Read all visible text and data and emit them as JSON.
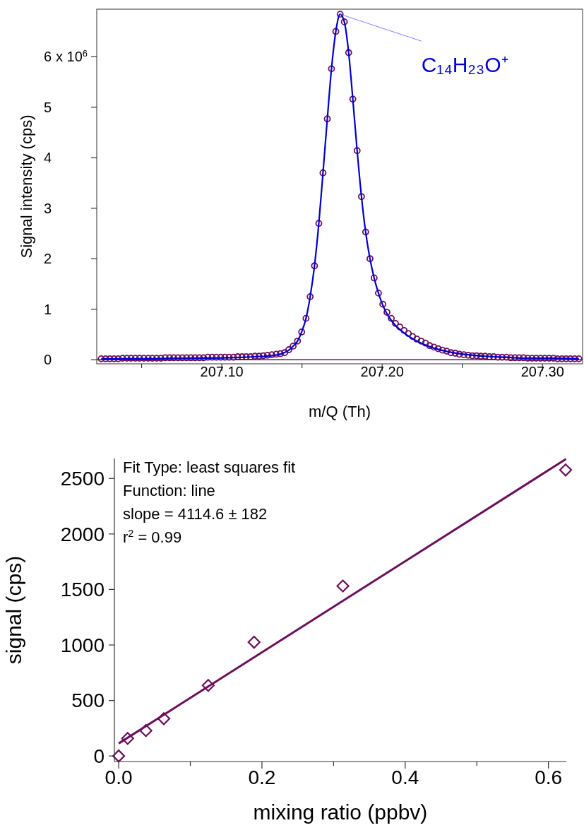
{
  "chart_data": [
    {
      "type": "scatter",
      "xlabel": "m/Q (Th)",
      "ylabel": "Signal intensity (cps)",
      "xlim": [
        207.022,
        207.325
      ],
      "ylim": [
        -0.08,
        6.94
      ],
      "xticks": [
        {
          "value": 207.05,
          "label": null
        },
        {
          "value": 207.1,
          "label": "207.10"
        },
        {
          "value": 207.15,
          "label": null
        },
        {
          "value": 207.2,
          "label": "207.20"
        },
        {
          "value": 207.25,
          "label": null
        },
        {
          "value": 207.3,
          "label": "207.30"
        }
      ],
      "yticks": [
        0,
        1,
        2,
        3,
        4,
        5,
        6
      ],
      "ref_lines": [
        {
          "axis": "y",
          "value": 0,
          "color": "#6b0f5a"
        }
      ],
      "annotations": [
        "x 10$^{6}$",
        {
          "text": "C₁₄H₂₃O⁺",
          "x": 207.1738,
          "y": 6.84
        }
      ],
      "series": [
        {
          "marker": "circle",
          "color": "#6b0f5a",
          "x": [
            207.0248,
            207.0275,
            207.0301,
            207.0328,
            207.0354,
            207.0381,
            207.0408,
            207.0434,
            207.0461,
            207.0487,
            207.0514,
            207.0541,
            207.0567,
            207.0594,
            207.062,
            207.0647,
            207.0674,
            207.07,
            207.0727,
            207.0753,
            207.078,
            207.0807,
            207.0833,
            207.086,
            207.0886,
            207.0913,
            207.094,
            207.0966,
            207.0993,
            207.1019,
            207.1046,
            207.1073,
            207.1099,
            207.1126,
            207.1152,
            207.1179,
            207.1206,
            207.1232,
            207.1259,
            207.1285,
            207.1312,
            207.1339,
            207.1365,
            207.1392,
            207.1418,
            207.1445,
            207.1472,
            207.1498,
            207.1525,
            207.1551,
            207.1578,
            207.1605,
            207.1631,
            207.1658,
            207.1684,
            207.1711,
            207.1738,
            207.1764,
            207.1791,
            207.1817,
            207.1844,
            207.1871,
            207.1897,
            207.1924,
            207.195,
            207.1977,
            207.2004,
            207.203,
            207.2057,
            207.2083,
            207.211,
            207.2137,
            207.2163,
            207.219,
            207.2216,
            207.2243,
            207.227,
            207.2296,
            207.2323,
            207.2349,
            207.2376,
            207.2403,
            207.2429,
            207.2456,
            207.2482,
            207.2509,
            207.2536,
            207.2562,
            207.2589,
            207.2615,
            207.2642,
            207.2669,
            207.2695,
            207.2722,
            207.2748,
            207.2775,
            207.2802,
            207.2828,
            207.2855,
            207.2881,
            207.2908,
            207.2935,
            207.2961,
            207.2988,
            207.3014,
            207.3041,
            207.3068,
            207.3094,
            207.3121,
            207.3147,
            207.3174,
            207.3201,
            207.3227
          ],
          "values": [
            0.02,
            0.02,
            0.02,
            0.02,
            0.02,
            0.03,
            0.03,
            0.03,
            0.03,
            0.03,
            0.03,
            0.03,
            0.03,
            0.03,
            0.03,
            0.04,
            0.04,
            0.04,
            0.04,
            0.04,
            0.04,
            0.04,
            0.04,
            0.04,
            0.04,
            0.05,
            0.05,
            0.05,
            0.05,
            0.05,
            0.05,
            0.05,
            0.06,
            0.06,
            0.06,
            0.06,
            0.07,
            0.07,
            0.08,
            0.09,
            0.1,
            0.11,
            0.12,
            0.14,
            0.2,
            0.27,
            0.37,
            0.55,
            0.82,
            1.25,
            1.86,
            2.7,
            3.7,
            4.77,
            5.76,
            6.5,
            6.84,
            6.69,
            6.08,
            5.16,
            4.14,
            3.23,
            2.53,
            2.0,
            1.62,
            1.32,
            1.1,
            0.94,
            0.82,
            0.72,
            0.65,
            0.58,
            0.52,
            0.46,
            0.41,
            0.37,
            0.33,
            0.28,
            0.25,
            0.22,
            0.19,
            0.17,
            0.14,
            0.13,
            0.11,
            0.1,
            0.09,
            0.08,
            0.08,
            0.07,
            0.07,
            0.06,
            0.06,
            0.05,
            0.05,
            0.05,
            0.04,
            0.04,
            0.04,
            0.04,
            0.03,
            0.03,
            0.03,
            0.03,
            0.03,
            0.03,
            0.03,
            0.02,
            0.02,
            0.02,
            0.02,
            0.02,
            0.02
          ]
        },
        {
          "type": "line",
          "color": "#0000d0",
          "x": [
            207.0248,
            207.0514,
            207.078,
            207.1046,
            207.1206,
            207.1312,
            207.1365,
            207.1418,
            207.1445,
            207.1472,
            207.1498,
            207.1525,
            207.1551,
            207.1578,
            207.1605,
            207.1631,
            207.1658,
            207.1684,
            207.1711,
            207.1738,
            207.1764,
            207.1791,
            207.1817,
            207.1844,
            207.1871,
            207.1897,
            207.1924,
            207.195,
            207.1977,
            207.2004,
            207.203,
            207.2057,
            207.2083,
            207.211,
            207.2163,
            207.2243,
            207.2323,
            207.2429,
            207.2536,
            207.2642,
            207.2775,
            207.2908,
            207.3068,
            207.3227
          ],
          "values": [
            0.02,
            0.02,
            0.03,
            0.04,
            0.06,
            0.08,
            0.11,
            0.19,
            0.27,
            0.37,
            0.55,
            0.82,
            1.25,
            1.86,
            2.7,
            3.7,
            4.77,
            5.76,
            6.5,
            6.84,
            6.69,
            6.08,
            5.16,
            4.14,
            3.23,
            2.53,
            2.0,
            1.62,
            1.32,
            1.08,
            0.91,
            0.78,
            0.68,
            0.6,
            0.47,
            0.33,
            0.23,
            0.15,
            0.1,
            0.07,
            0.05,
            0.03,
            0.03,
            0.02
          ]
        }
      ]
    },
    {
      "type": "scatter",
      "xlabel": "mixing ratio (ppbv)",
      "ylabel": "signal (cps)",
      "xlim": [
        -0.006,
        0.625
      ],
      "ylim": [
        -50,
        2680
      ],
      "xticks": [
        {
          "value": 0,
          "label": "0.0"
        },
        {
          "value": 0.1,
          "label": null
        },
        {
          "value": 0.2,
          "label": "0.2"
        },
        {
          "value": 0.3,
          "label": null
        },
        {
          "value": 0.4,
          "label": "0.4"
        },
        {
          "value": 0.5,
          "label": null
        },
        {
          "value": 0.6,
          "label": "0.6"
        }
      ],
      "yticks": [
        0,
        500,
        1000,
        1500,
        2000,
        2500
      ],
      "annotations": [
        "Fit Type: least squares fit",
        "Function: line",
        "slope = 4114.6 ± 182",
        "r$^{2}$ = 0.99"
      ],
      "series": [
        {
          "marker": "diamond",
          "color": "#6b0f5a",
          "x": [
            0,
            0.0125,
            0.038,
            0.063,
            0.125,
            0.189,
            0.313,
            0.624
          ],
          "values": [
            0,
            158,
            229,
            336,
            636,
            1025,
            1531,
            2576
          ]
        },
        {
          "type": "line",
          "color": "#6b0f5a",
          "x": [
            0,
            0.6245
          ],
          "values": [
            113,
            2675
          ]
        }
      ]
    }
  ]
}
